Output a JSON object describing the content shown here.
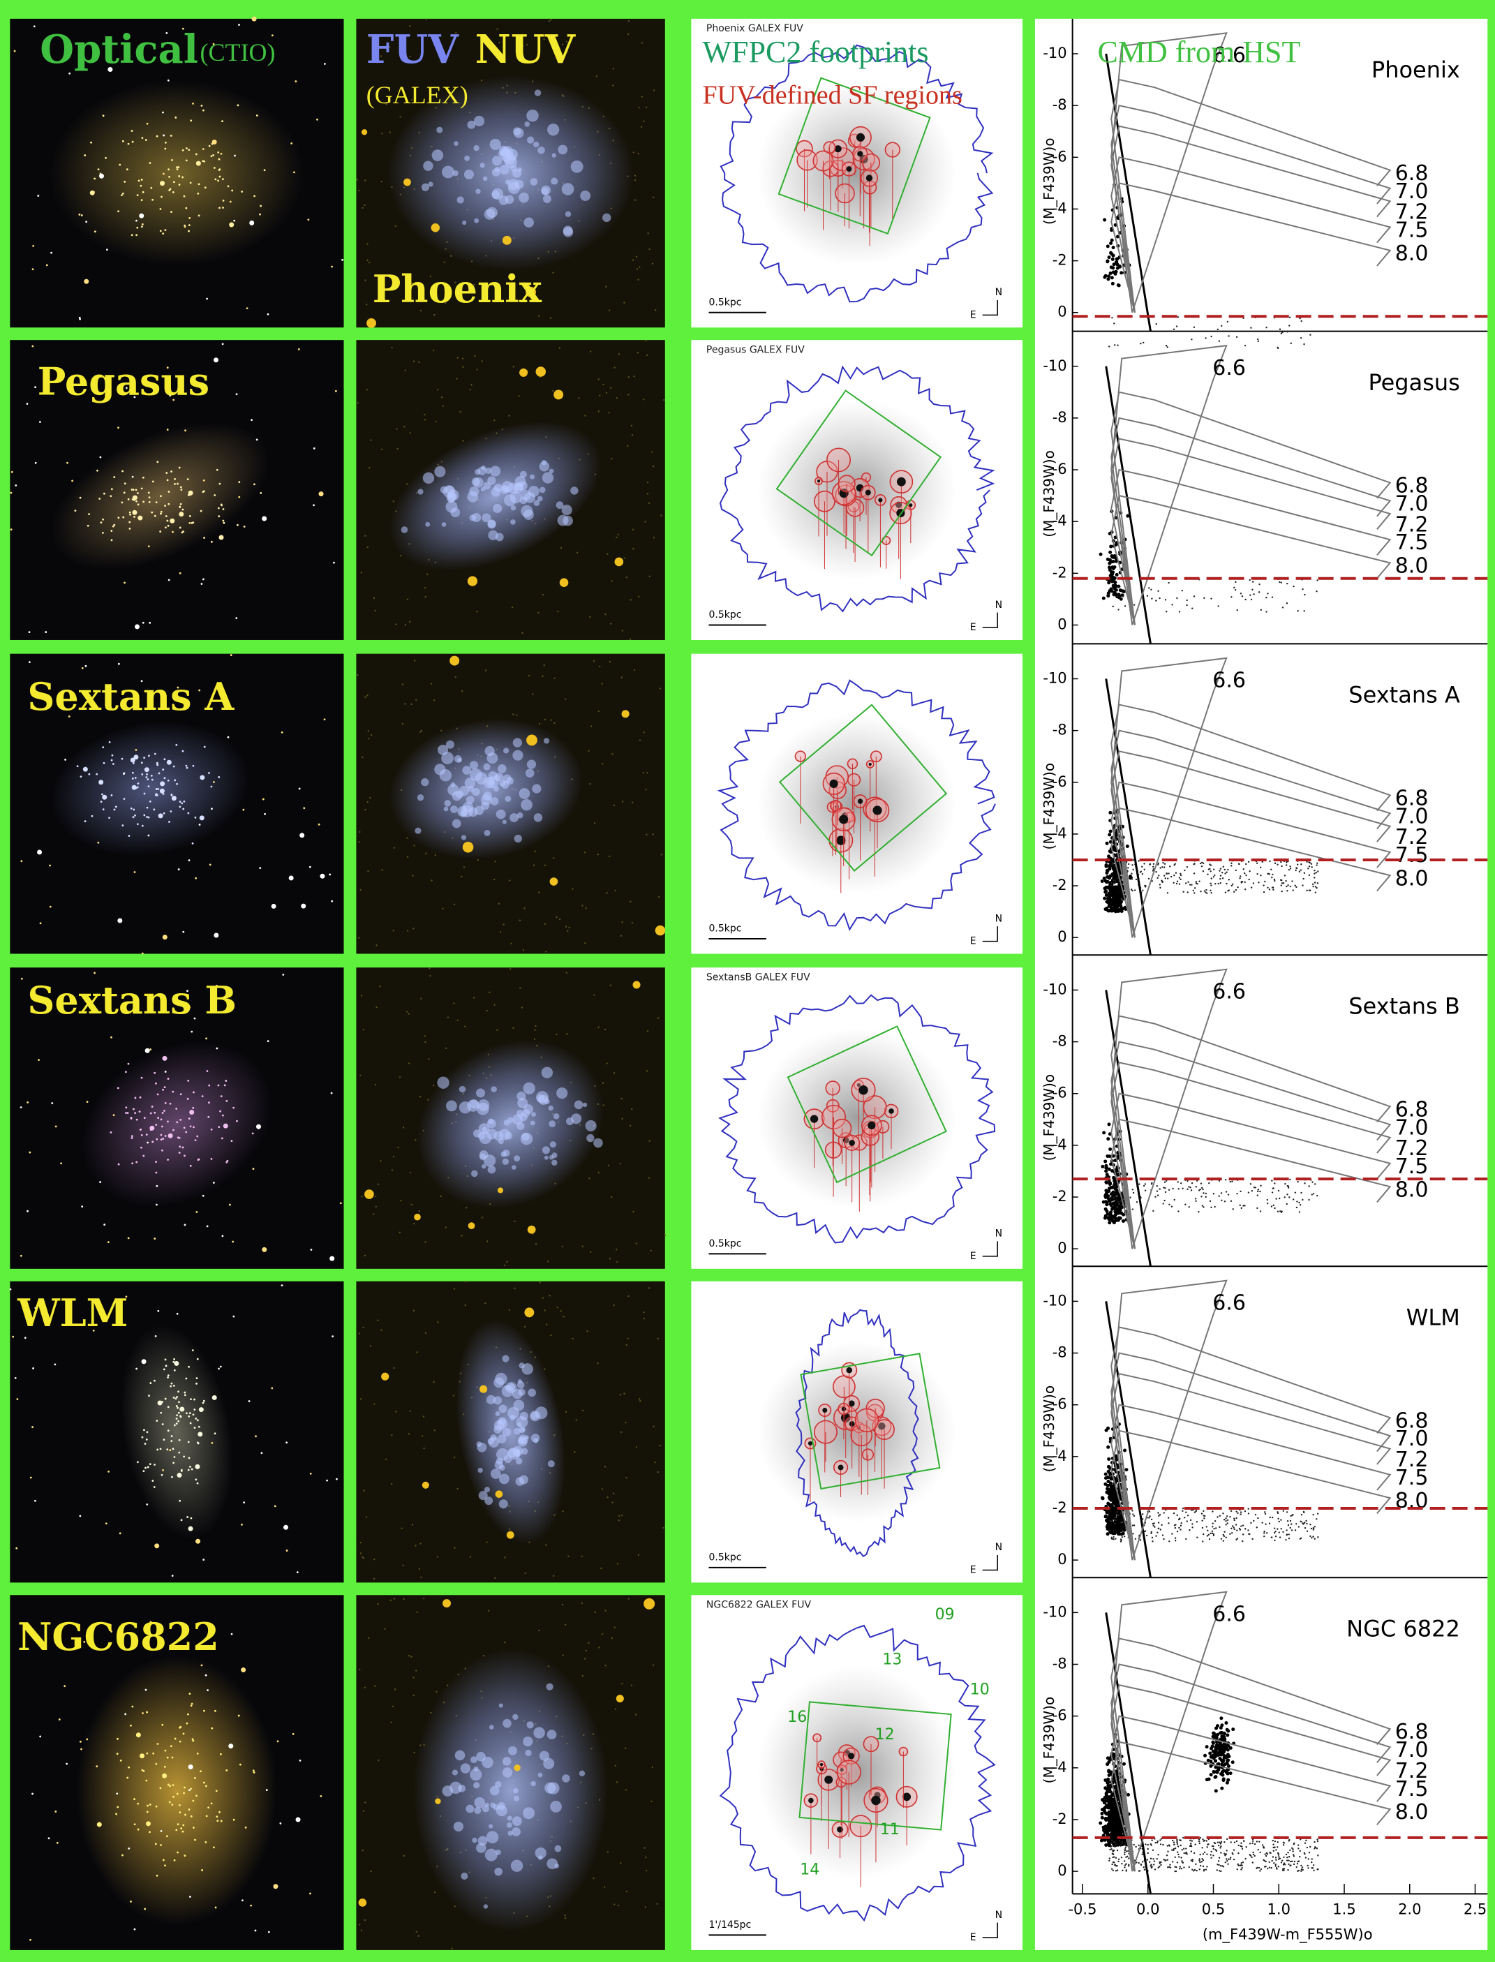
{
  "headers": {
    "optical": "Optical",
    "optical_source": "(CTIO)",
    "fuv": "FUV",
    "nuv": "NUV",
    "galex": "(GALEX)",
    "footprints": "WFPC2 footprints",
    "sf_regions": "FUV-defined SF regions",
    "cmd": "CMD from HST"
  },
  "galaxies": [
    {
      "name": "Phoenix",
      "map_label": "Phoenix   GALEX FUV",
      "scale_bar": "0.5kpc",
      "cmd_label": "Phoenix"
    },
    {
      "name": "Pegasus",
      "map_label": "Pegasus   GALEX FUV",
      "scale_bar": "0.5kpc",
      "cmd_label": "Pegasus"
    },
    {
      "name": "Sextans A",
      "map_label": null,
      "scale_bar": "0.5kpc",
      "cmd_label": "Sextans A"
    },
    {
      "name": "Sextans B",
      "map_label": "SextansB   GALEX FUV",
      "scale_bar": "0.5kpc",
      "cmd_label": "Sextans B"
    },
    {
      "name": "WLM",
      "map_label": null,
      "scale_bar": "0.5kpc",
      "cmd_label": "WLM"
    },
    {
      "name": "NGC6822",
      "map_label": "NGC6822    GALEX FUV",
      "scale_bar": "1'/145pc",
      "cmd_label": "NGC 6822"
    }
  ],
  "compass": {
    "north": "N",
    "east": "E"
  },
  "ngc6822_fields": [
    "09",
    "10",
    "13",
    "16",
    "12",
    "11",
    "14"
  ],
  "cmd": {
    "ylabel": "(M_F439W)o",
    "xlabel": "(m_F439W-m_F555W)o",
    "yticks": [
      "-10",
      "-8",
      "-6",
      "-4",
      "-2",
      "0"
    ],
    "xticks": [
      "-0.5",
      "0.0",
      "0.5",
      "1.0",
      "1.5",
      "2.0",
      "2.5"
    ],
    "ages": [
      "6.6",
      "6.8",
      "7.0",
      "7.2",
      "7.5",
      "8.0"
    ]
  }
}
